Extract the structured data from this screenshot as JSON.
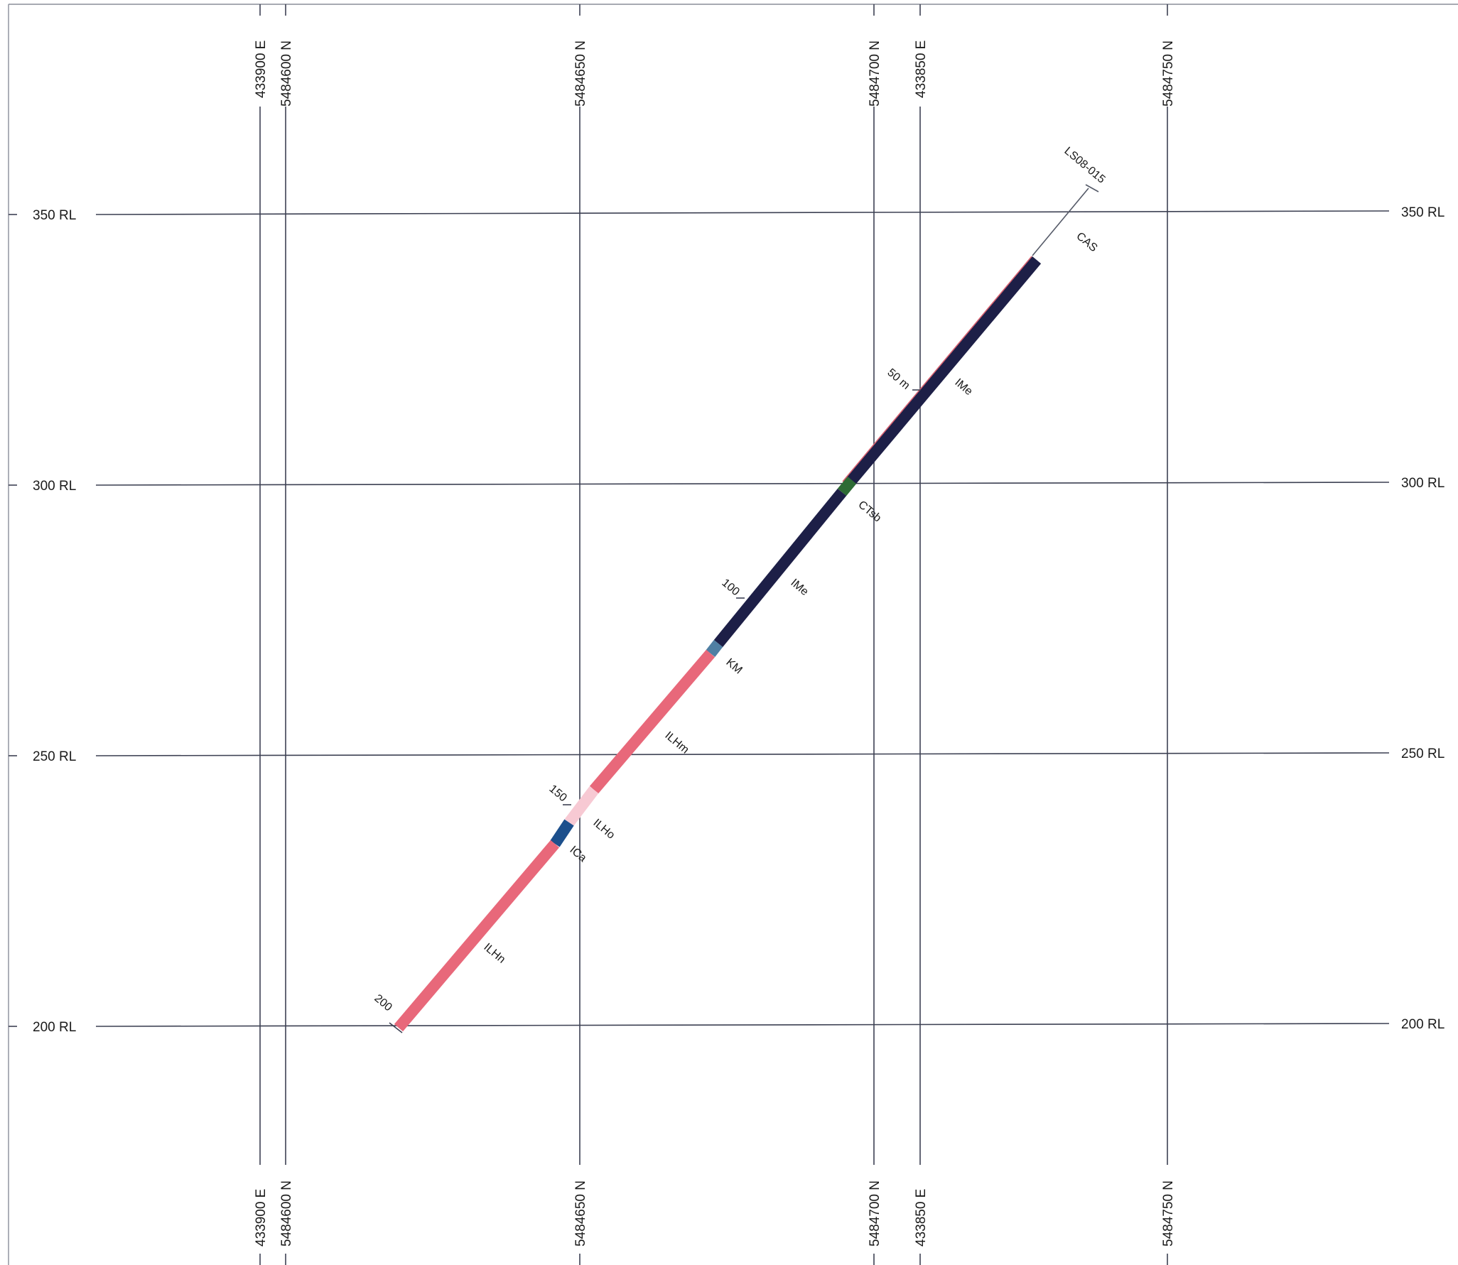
{
  "drillhole": {
    "name": "LS08-015",
    "depth_markers": [
      "50 m",
      "100",
      "150",
      "200"
    ]
  },
  "rl_labels": [
    "350 RL",
    "300 RL",
    "250 RL",
    "200 RL"
  ],
  "grid_lines": {
    "east": [
      "433900 E",
      "433850 E"
    ],
    "north": [
      "5484600 N",
      "5484650 N",
      "5484700 N",
      "5484750 N"
    ]
  },
  "units": [
    {
      "code": "CAS",
      "color": "#ffffff"
    },
    {
      "code": "IMe",
      "color": "#1d1f47"
    },
    {
      "code": "CTsb",
      "color": "#2e6b35"
    },
    {
      "code": "IMe",
      "color": "#1d1f47"
    },
    {
      "code": "KM",
      "color": "#4f7fa3"
    },
    {
      "code": "ILHm",
      "color": "#e8687a"
    },
    {
      "code": "ILHo",
      "color": "#f7c9d3"
    },
    {
      "code": "ICa",
      "color": "#1c4f8c"
    },
    {
      "code": "ILHn",
      "color": "#e8687a"
    }
  ]
}
